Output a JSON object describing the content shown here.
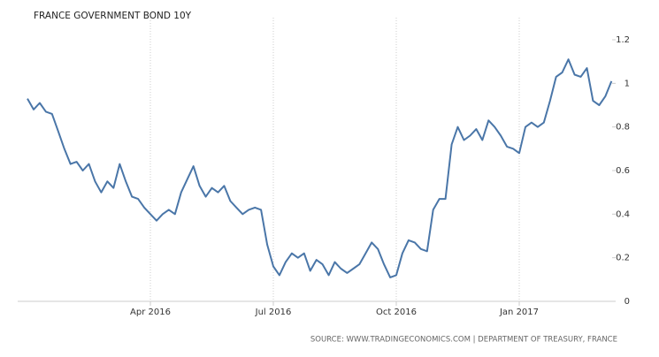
{
  "chart_data": {
    "type": "line",
    "title": "FRANCE GOVERNMENT BOND 10Y",
    "source": "SOURCE: WWW.TRADINGECONOMICS.COM | DEPARTMENT OF TREASURY, FRANCE",
    "categories": [
      null,
      null,
      null,
      null,
      null,
      null,
      null,
      null,
      null,
      null,
      null,
      null,
      null,
      null,
      null,
      null,
      null,
      null,
      null,
      null,
      "Apr 2016",
      null,
      null,
      null,
      null,
      null,
      null,
      null,
      null,
      null,
      null,
      null,
      null,
      null,
      null,
      null,
      null,
      null,
      null,
      null,
      "Jul 2016",
      null,
      null,
      null,
      null,
      null,
      null,
      null,
      null,
      null,
      null,
      null,
      null,
      null,
      null,
      null,
      null,
      null,
      null,
      null,
      "Oct 2016",
      null,
      null,
      null,
      null,
      null,
      null,
      null,
      null,
      null,
      null,
      null,
      null,
      null,
      null,
      null,
      null,
      null,
      null,
      null,
      "Jan 2017",
      null,
      null,
      null,
      null,
      null,
      null,
      null,
      null,
      null,
      null,
      null,
      null,
      null,
      null,
      null
    ],
    "values": [
      0.93,
      0.88,
      0.91,
      0.87,
      0.86,
      0.78,
      0.7,
      0.63,
      0.64,
      0.6,
      0.63,
      0.55,
      0.5,
      0.55,
      0.52,
      0.63,
      0.55,
      0.48,
      0.47,
      0.43,
      0.4,
      0.37,
      0.4,
      0.42,
      0.4,
      0.5,
      0.56,
      0.62,
      0.53,
      0.48,
      0.52,
      0.5,
      0.53,
      0.46,
      0.43,
      0.4,
      0.42,
      0.43,
      0.42,
      0.26,
      0.16,
      0.12,
      0.18,
      0.22,
      0.2,
      0.22,
      0.14,
      0.19,
      0.17,
      0.12,
      0.18,
      0.15,
      0.13,
      0.15,
      0.17,
      0.22,
      0.27,
      0.24,
      0.17,
      0.11,
      0.12,
      0.22,
      0.28,
      0.27,
      0.24,
      0.23,
      0.42,
      0.47,
      0.47,
      0.72,
      0.8,
      0.74,
      0.76,
      0.79,
      0.74,
      0.83,
      0.8,
      0.76,
      0.71,
      0.7,
      0.68,
      0.8,
      0.82,
      0.8,
      0.82,
      0.92,
      1.03,
      1.05,
      1.11,
      1.04,
      1.03,
      1.07,
      0.92,
      0.9,
      0.94,
      1.01
    ],
    "color": "#4a76a8",
    "ylim": [
      0,
      1.2
    ],
    "yticks": [
      0,
      0.2,
      0.4,
      0.6,
      0.8,
      1,
      1.2
    ],
    "grid": true
  }
}
